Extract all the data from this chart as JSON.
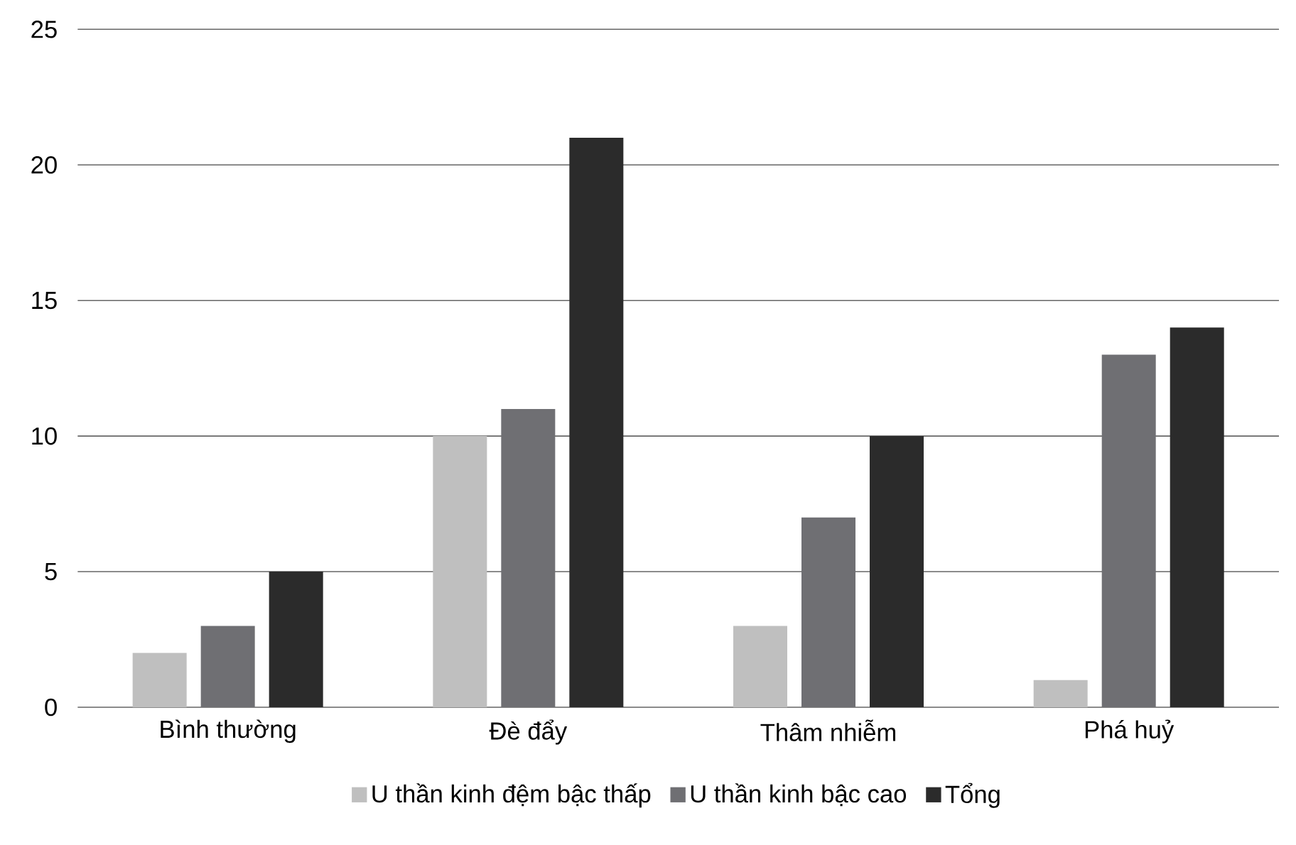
{
  "chart_data": {
    "type": "bar",
    "categories": [
      "Bình thường",
      "Đè đẩy",
      "Thâm nhiễm",
      "Phá huỷ"
    ],
    "series": [
      {
        "name": "U thần kinh đệm bậc thấp",
        "color": "#bfbfbf",
        "values": [
          2,
          10,
          3,
          1
        ]
      },
      {
        "name": "U thần kinh bậc cao",
        "color": "#6f6f73",
        "values": [
          3,
          11,
          7,
          13
        ]
      },
      {
        "name": "Tổng",
        "color": "#2b2b2b",
        "values": [
          5,
          21,
          10,
          14
        ]
      }
    ],
    "ylim": [
      0,
      25
    ],
    "yticks": [
      0,
      5,
      10,
      15,
      20,
      25
    ],
    "grid": "y",
    "legend": "bottom"
  }
}
